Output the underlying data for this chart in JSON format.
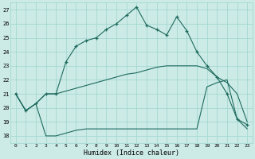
{
  "xlabel": "Humidex (Indice chaleur)",
  "background_color": "#cceae6",
  "grid_color": "#9dd5cf",
  "line_color": "#1e6b5e",
  "xlim": [
    -0.5,
    23.5
  ],
  "ylim": [
    17.5,
    27.5
  ],
  "xticks": [
    0,
    1,
    2,
    3,
    4,
    5,
    6,
    7,
    8,
    9,
    10,
    11,
    12,
    13,
    14,
    15,
    16,
    17,
    18,
    19,
    20,
    21,
    22,
    23
  ],
  "yticks": [
    18,
    19,
    20,
    21,
    22,
    23,
    24,
    25,
    26,
    27
  ],
  "main_x": [
    0,
    1,
    2,
    3,
    4,
    5,
    6,
    7,
    8,
    9,
    10,
    11,
    12,
    13,
    14,
    15,
    16,
    17,
    18,
    19,
    20,
    21,
    22,
    23
  ],
  "main_y": [
    21.0,
    19.8,
    20.3,
    21.0,
    21.0,
    23.3,
    24.4,
    24.8,
    25.0,
    25.6,
    26.0,
    26.6,
    27.2,
    25.9,
    25.6,
    25.2,
    26.5,
    25.5,
    24.0,
    23.0,
    22.2,
    21.0,
    19.2,
    18.8
  ],
  "upper_x": [
    0,
    1,
    2,
    3,
    4,
    5,
    6,
    7,
    8,
    9,
    10,
    11,
    12,
    13,
    14,
    15,
    16,
    17,
    18,
    19,
    20,
    21,
    22,
    23
  ],
  "upper_y": [
    21.0,
    19.8,
    20.3,
    21.0,
    21.0,
    21.2,
    21.4,
    21.6,
    21.8,
    22.0,
    22.2,
    22.4,
    22.5,
    22.7,
    22.9,
    23.0,
    23.0,
    23.0,
    23.0,
    22.8,
    22.2,
    21.8,
    21.0,
    19.0
  ],
  "lower_x": [
    0,
    1,
    2,
    3,
    4,
    5,
    6,
    7,
    8,
    9,
    10,
    11,
    12,
    13,
    14,
    15,
    16,
    17,
    18,
    19,
    20,
    21,
    22,
    23
  ],
  "lower_y": [
    21.0,
    19.8,
    20.3,
    18.0,
    18.0,
    18.2,
    18.4,
    18.5,
    18.5,
    18.5,
    18.5,
    18.5,
    18.5,
    18.5,
    18.5,
    18.5,
    18.5,
    18.5,
    18.5,
    21.5,
    21.8,
    22.0,
    19.2,
    18.5
  ]
}
